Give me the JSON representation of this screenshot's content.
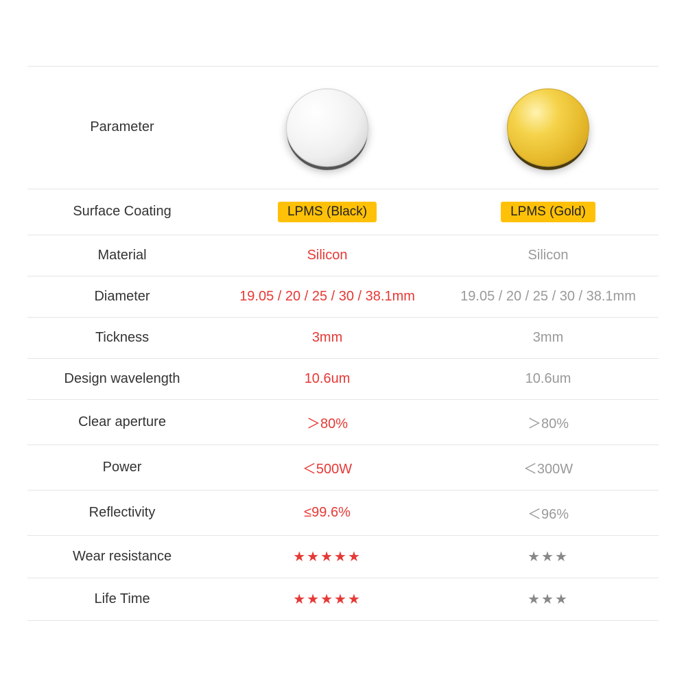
{
  "header": {
    "param_label": "Parameter",
    "col1_mirror_type": "silver",
    "col2_mirror_type": "gold"
  },
  "rows": [
    {
      "param": "Surface Coating",
      "col1": "LPMS (Black)",
      "col2": "LPMS (Gold)",
      "style": "badge"
    },
    {
      "param": "Material",
      "col1": "Silicon",
      "col2": "Silicon",
      "col1_class": "red",
      "col2_class": "gray"
    },
    {
      "param": "Diameter",
      "col1": "19.05 / 20 / 25 / 30 / 38.1mm",
      "col2": "19.05 / 20 / 25 / 30 / 38.1mm",
      "col1_class": "red",
      "col2_class": "gray"
    },
    {
      "param": "Tickness",
      "col1": "3mm",
      "col2": "3mm",
      "col1_class": "red",
      "col2_class": "gray"
    },
    {
      "param": "Design wavelength",
      "col1": "10.6um",
      "col2": "10.6um",
      "col1_class": "red",
      "col2_class": "gray"
    },
    {
      "param": "Clear aperture",
      "col1": "＞80%",
      "col2": "＞80%",
      "col1_class": "red",
      "col2_class": "gray"
    },
    {
      "param": "Power",
      "col1": "＜500W",
      "col2": "＜300W",
      "col1_class": "red",
      "col2_class": "gray"
    },
    {
      "param": "Reflectivity",
      "col1": "≤99.6%",
      "col2": "＜96%",
      "col1_class": "red",
      "col2_class": "gray"
    },
    {
      "param": "Wear resistance",
      "col1": "★★★★★",
      "col2": "★★★",
      "col1_class": "stars red",
      "col2_class": "stars gray"
    },
    {
      "param": "Life Time",
      "col1": "★★★★★",
      "col2": "★★★",
      "col1_class": "stars red",
      "col2_class": "stars gray"
    }
  ],
  "colors": {
    "red": "#e53935",
    "gray": "#999999",
    "badge_bg": "#ffc107",
    "border": "#e5e5e5"
  }
}
